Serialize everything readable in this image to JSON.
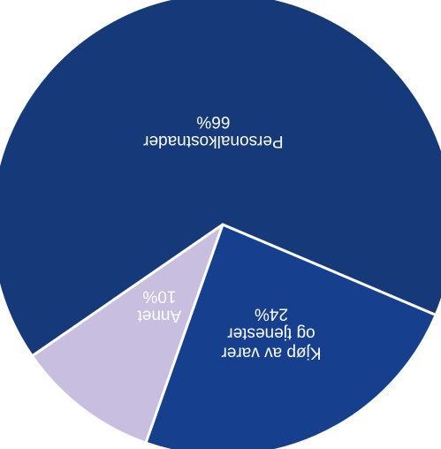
{
  "chart_data": {
    "type": "pie",
    "rotated_180": true,
    "slices": [
      {
        "label_lines": [
          "Kjøp av varer",
          "og tjenester"
        ],
        "pct_label": "24%",
        "value": 24,
        "color": "#16408e",
        "text_color": "#ffffff"
      },
      {
        "label_lines": [
          "Annet"
        ],
        "pct_label": "10%",
        "value": 10,
        "color": "#c8bfe0",
        "text_color": "#1f3a7a"
      },
      {
        "label_lines": [
          "Personalkostnader"
        ],
        "pct_label": "66%",
        "value": 66,
        "color": "#163a79",
        "text_color": "#ffffff"
      }
    ]
  }
}
